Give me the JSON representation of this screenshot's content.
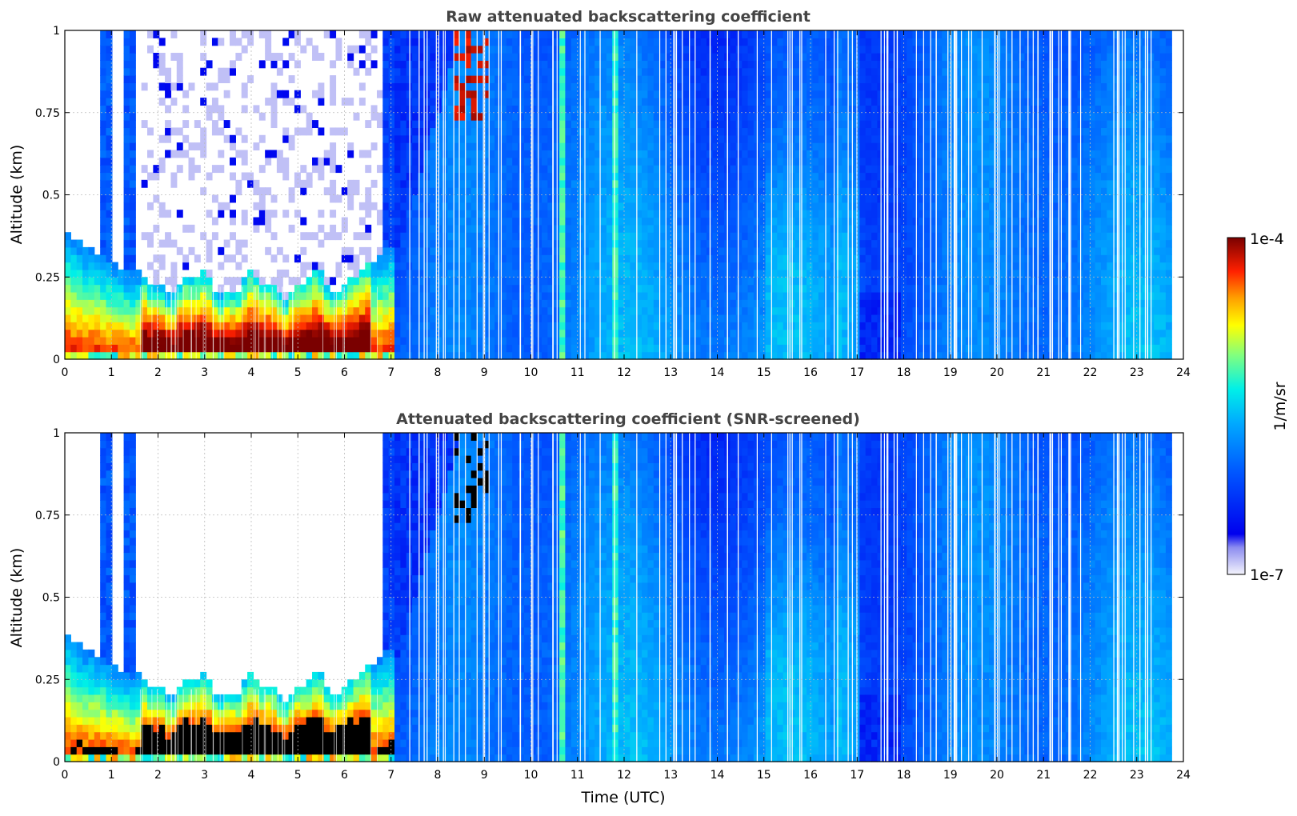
{
  "chart_data": [
    {
      "type": "heatmap",
      "title": "Raw attenuated backscattering coefficient",
      "xlabel": "",
      "ylabel": "Altitude (km)",
      "xlim": [
        0,
        24
      ],
      "ylim": [
        0,
        1
      ],
      "xticks": [
        "0",
        "1",
        "2",
        "3",
        "4",
        "5",
        "6",
        "7",
        "8",
        "9",
        "10",
        "11",
        "12",
        "13",
        "14",
        "15",
        "16",
        "17",
        "18",
        "19",
        "20",
        "21",
        "22",
        "23",
        "24"
      ],
      "yticks": [
        "0",
        "0.25",
        "0.5",
        "0.75",
        "1"
      ],
      "grid": true,
      "screened": false
    },
    {
      "type": "heatmap",
      "title": "Attenuated backscattering coefficient (SNR-screened)",
      "xlabel": "Time (UTC)",
      "ylabel": "Altitude (km)",
      "xlim": [
        0,
        24
      ],
      "ylim": [
        0,
        1
      ],
      "xticks": [
        "0",
        "1",
        "2",
        "3",
        "4",
        "5",
        "6",
        "7",
        "8",
        "9",
        "10",
        "11",
        "12",
        "13",
        "14",
        "15",
        "16",
        "17",
        "18",
        "19",
        "20",
        "21",
        "22",
        "23",
        "24"
      ],
      "yticks": [
        "0",
        "0.25",
        "0.5",
        "0.75",
        "1"
      ],
      "grid": true,
      "screened": true
    }
  ],
  "colorbar": {
    "label": "1/m/sr",
    "max_label": "1e-4",
    "min_label": "1e-7",
    "scale": "log",
    "colormap": [
      "#ebebf7",
      "#c8c8f0",
      "#0000e6",
      "#005aff",
      "#00b4ff",
      "#00ffe0",
      "#7fff7f",
      "#ffff00",
      "#ff9900",
      "#ff2200",
      "#7f0000"
    ]
  },
  "colors": {
    "empty": "#ffffff",
    "saturated_screened": "#000000",
    "title": "#444444"
  }
}
